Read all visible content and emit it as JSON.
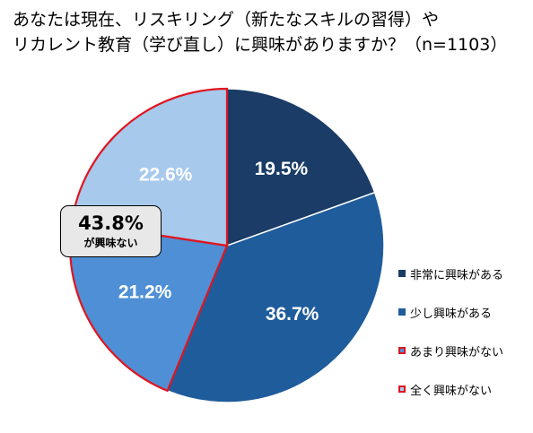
{
  "title": {
    "line1": "あなたは現在、リスキリング（新たなスキルの習得）や",
    "line2": "リカレント教育（学び直し）に興味がありますか？（n=1103）"
  },
  "chart_data": {
    "type": "pie",
    "start": "12 o'clock",
    "direction": "clockwise",
    "slices": [
      {
        "label": "非常に興味がある",
        "value": 19.5,
        "value_label": "19.5%",
        "color": "#1a3c66",
        "label_color": "#ffffff",
        "outline": "#ffffff"
      },
      {
        "label": "少し興味がある",
        "value": 36.7,
        "value_label": "36.7%",
        "color": "#1f5c9c",
        "label_color": "#ffffff",
        "outline": "#ffffff"
      },
      {
        "label": "あまり興味がない",
        "value": 21.2,
        "value_label": "21.2%",
        "color": "#4f8fd6",
        "label_color": "#ffffff",
        "outline": "#e0151f"
      },
      {
        "label": "全く興味がない",
        "value": 22.6,
        "value_label": "22.6%",
        "color": "#a6c9ec",
        "label_color": "#ffffff",
        "outline": "#e0151f"
      }
    ],
    "annotation": {
      "value": "43.8%",
      "label": "が興味ない"
    },
    "legend": "right"
  },
  "colors": {
    "highlight_outline": "#e0151f"
  }
}
